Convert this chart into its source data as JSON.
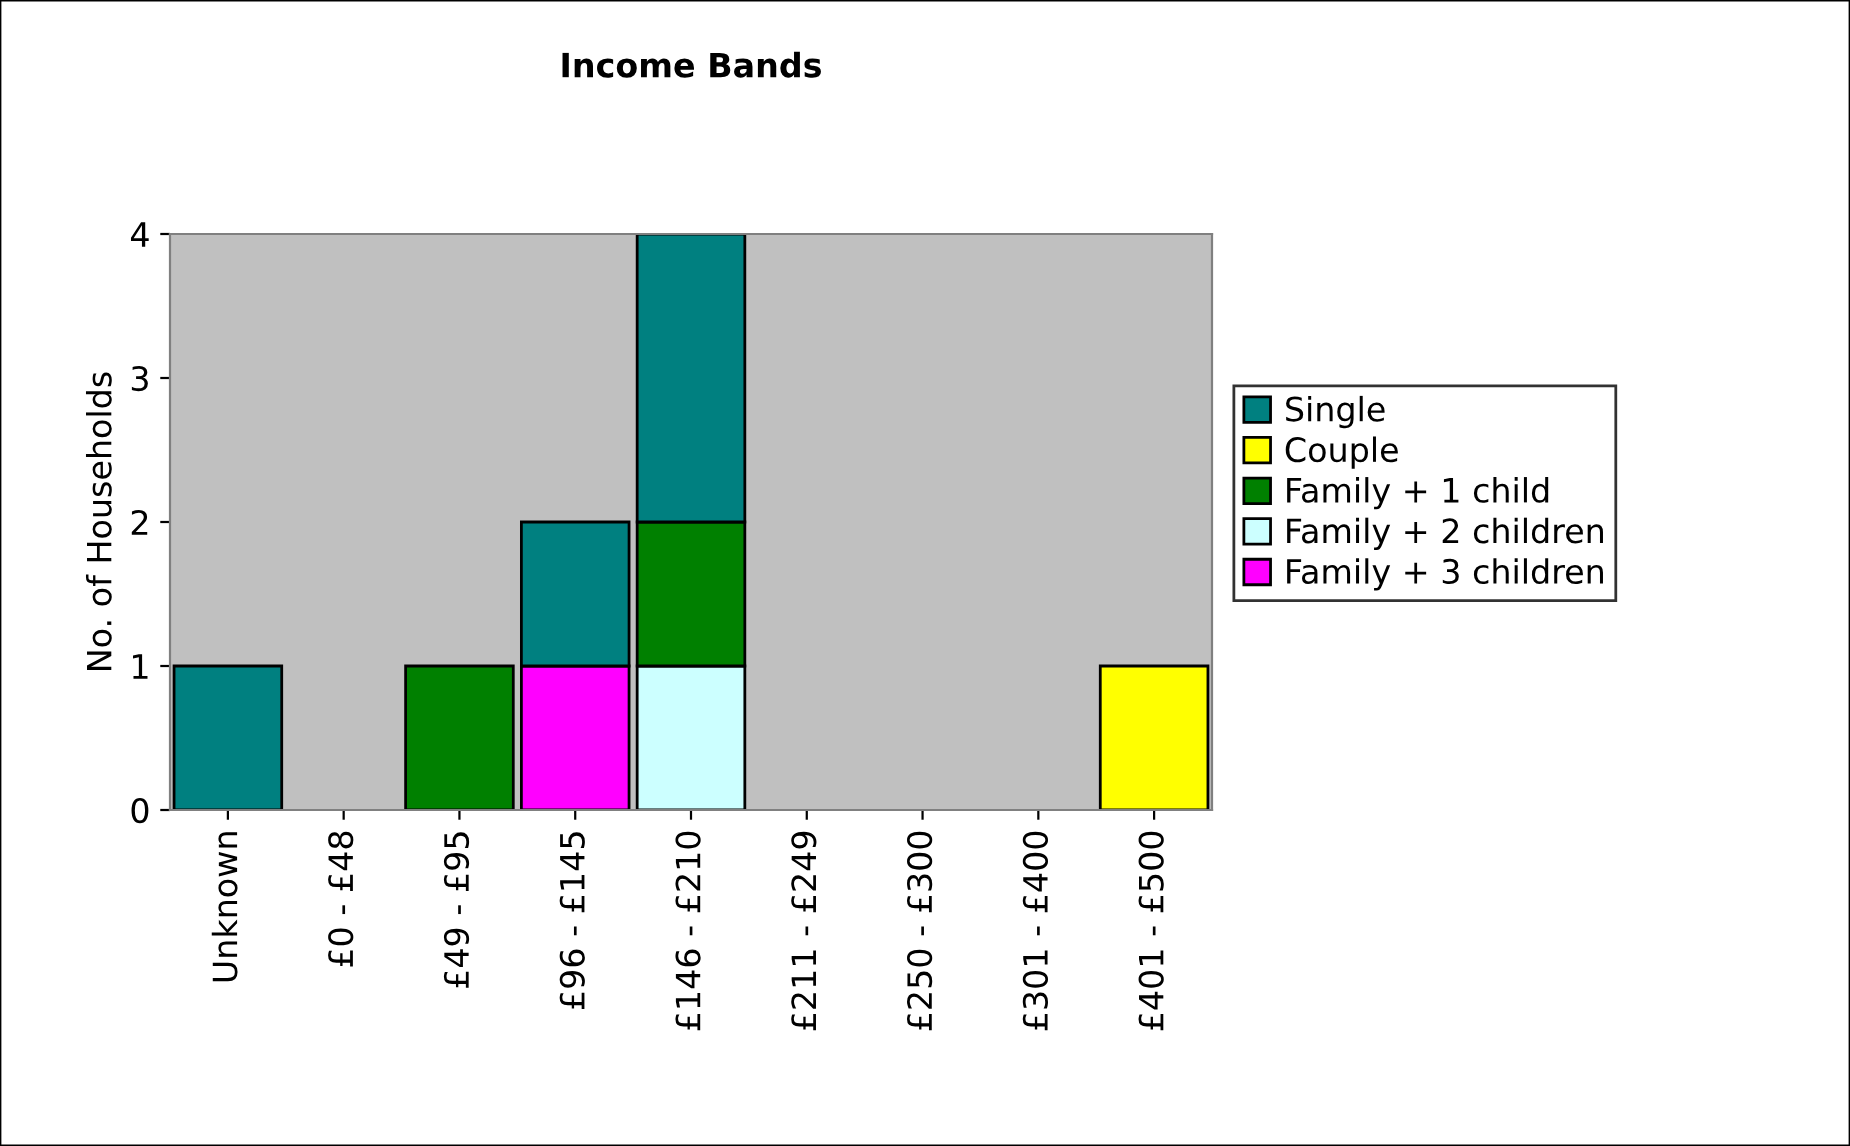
{
  "chart_data": {
    "type": "bar",
    "title": "Income Bands",
    "ylabel": "No. of Households",
    "categories": [
      "Unknown",
      "£0 - £48",
      "£49 - £95",
      "£96 - £145",
      "£146 - £210",
      "£211 - £249",
      "£250 - £300",
      "£301 - £400",
      "£401 - £500"
    ],
    "stacked": true,
    "series": [
      {
        "name": "Family + 3 children",
        "color": "#ff00ff",
        "values": [
          0,
          0,
          0,
          1,
          0,
          0,
          0,
          0,
          0
        ]
      },
      {
        "name": "Family + 2 children",
        "color": "#ccffff",
        "values": [
          0,
          0,
          0,
          0,
          1,
          0,
          0,
          0,
          0
        ]
      },
      {
        "name": "Family + 1 child",
        "color": "#008000",
        "values": [
          0,
          0,
          1,
          0,
          1,
          0,
          0,
          0,
          0
        ]
      },
      {
        "name": "Couple",
        "color": "#ffff00",
        "values": [
          0,
          0,
          0,
          0,
          0,
          0,
          0,
          0,
          1
        ]
      },
      {
        "name": "Single",
        "color": "#008080",
        "values": [
          1,
          0,
          0,
          1,
          2,
          0,
          0,
          0,
          0
        ]
      }
    ],
    "ylim": [
      0,
      4
    ],
    "yticks": [
      0,
      1,
      2,
      3,
      4
    ],
    "grid": false,
    "legend": "right"
  }
}
